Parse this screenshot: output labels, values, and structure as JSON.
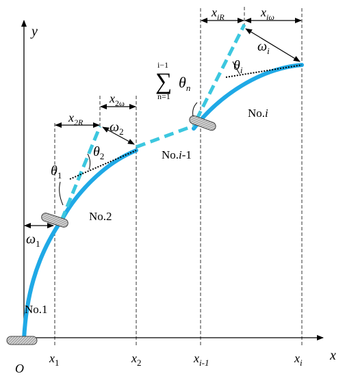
{
  "colors": {
    "curve": "#1fa9e6",
    "dashed_link": "#3cc7df",
    "dotted_tangent": "#000000",
    "clamp_fill": "#cfcfcf",
    "axis": "#000000"
  },
  "axes": {
    "x_label": "x",
    "y_label": "y",
    "origin_label": "O"
  },
  "ticks": {
    "x1": "x",
    "x1_sub": "1",
    "x2": "x",
    "x2_sub": "2",
    "xim1": "x",
    "xim1_sub": "i-1",
    "xi": "x",
    "xi_sub": "i"
  },
  "segments": {
    "seg1": "No.1",
    "seg2": "No.2",
    "segim1_prefix": "No.",
    "segim1_italic": "i",
    "segim1_suffix": "-1",
    "segi_prefix": "No.",
    "segi_italic": "i"
  },
  "annotations": {
    "omega": "ω",
    "omega1_sub": "1",
    "omega2_sub": "2",
    "omegai_sub": "i",
    "theta": "θ",
    "theta1_sub": "1",
    "theta2_sub": "2",
    "thetai_sub": "i",
    "x2R": "x",
    "x2R_sub": "2R",
    "x2w": "x",
    "x2w_sub": "2ω",
    "xiR": "x",
    "xiR_sub": "iR",
    "xiw": "x",
    "xiw_sub": "iω",
    "sum_sign": "∑",
    "sum_upper": "i−1",
    "sum_lower": "n=1",
    "sum_theta": "θ",
    "sum_theta_sub": "n"
  }
}
